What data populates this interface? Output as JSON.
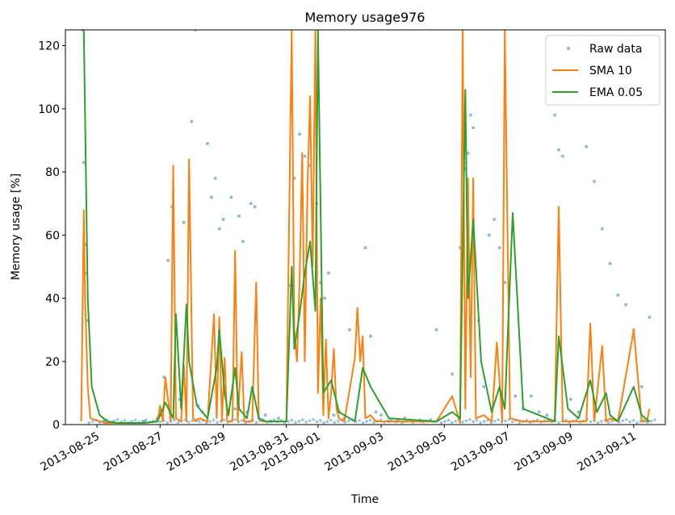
{
  "chart_data": {
    "type": "line",
    "title": "Memory usage976",
    "xlabel": "Time",
    "ylabel": "Memory usage [%]",
    "xlim": [
      "2013-08-24T00:00",
      "2013-09-12T00:00"
    ],
    "ylim": [
      0,
      125
    ],
    "yticks": [
      0,
      20,
      40,
      60,
      80,
      100,
      120
    ],
    "xticks": [
      "2013-08-25",
      "2013-08-27",
      "2013-08-29",
      "2013-08-31",
      "2013-09-01",
      "2013-09-03",
      "2013-09-05",
      "2013-09-07",
      "2013-09-09",
      "2013-09-11"
    ],
    "grid": false,
    "legend_position": "top-right",
    "colors": {
      "raw": "#1f77b4",
      "sma": "#ff7f0e",
      "ema": "#2ca02c"
    },
    "series": [
      {
        "name": "Raw data",
        "style": "points",
        "x": [
          "2013-08-24T14:00",
          "2013-08-24T15:00",
          "2013-08-24T16:00",
          "2013-08-24T17:00",
          "2013-08-25T06:00",
          "2013-08-26T12:00",
          "2013-08-26T22:00",
          "2013-08-27T00:00",
          "2013-08-27T03:00",
          "2013-08-27T06:00",
          "2013-08-27T09:00",
          "2013-08-27T12:00",
          "2013-08-27T15:00",
          "2013-08-27T18:00",
          "2013-08-27T21:00",
          "2013-08-28T00:00",
          "2013-08-28T03:00",
          "2013-08-28T05:00",
          "2013-08-28T08:00",
          "2013-08-28T12:00",
          "2013-08-28T15:00",
          "2013-08-28T18:00",
          "2013-08-28T21:00",
          "2013-08-29T00:00",
          "2013-08-29T03:00",
          "2013-08-29T06:00",
          "2013-08-29T09:00",
          "2013-08-29T12:00",
          "2013-08-29T15:00",
          "2013-08-29T18:00",
          "2013-08-29T21:00",
          "2013-08-30T00:00",
          "2013-08-30T03:00",
          "2013-08-30T08:00",
          "2013-08-30T12:00",
          "2013-08-30T18:00",
          "2013-08-31T02:00",
          "2013-08-31T06:00",
          "2013-08-31T10:00",
          "2013-08-31T14:00",
          "2013-08-31T17:00",
          "2013-08-31T20:00",
          "2013-08-31T23:00",
          "2013-09-01T02:00",
          "2013-09-01T05:00",
          "2013-09-01T08:00",
          "2013-09-01T12:00",
          "2013-09-01T16:00",
          "2013-09-01T20:00",
          "2013-09-02T00:00",
          "2013-09-02T06:00",
          "2013-09-02T12:00",
          "2013-09-02T16:00",
          "2013-09-02T20:00",
          "2013-09-03T00:00",
          "2013-09-03T06:00",
          "2013-09-03T12:00",
          "2013-09-03T18:00",
          "2013-09-04T06:00",
          "2013-09-04T18:00",
          "2013-09-05T06:00",
          "2013-09-05T12:00",
          "2013-09-05T16:00",
          "2013-09-05T18:00",
          "2013-09-05T20:00",
          "2013-09-05T22:00",
          "2013-09-06T02:00",
          "2013-09-06T06:00",
          "2013-09-06T10:00",
          "2013-09-06T14:00",
          "2013-09-06T18:00",
          "2013-09-06T22:00",
          "2013-09-07T06:00",
          "2013-09-07T12:00",
          "2013-09-07T18:00",
          "2013-09-08T00:00",
          "2013-09-08T06:00",
          "2013-09-08T12:00",
          "2013-09-08T15:00",
          "2013-09-08T18:00",
          "2013-09-09T00:00",
          "2013-09-09T06:00",
          "2013-09-09T12:00",
          "2013-09-09T18:00",
          "2013-09-10T00:00",
          "2013-09-10T06:00",
          "2013-09-10T12:00",
          "2013-09-10T18:00",
          "2013-09-11T00:00",
          "2013-09-11T06:00",
          "2013-09-11T12:00"
        ],
        "y": [
          83,
          57,
          48,
          33,
          1,
          1,
          2,
          3,
          15,
          52,
          69,
          30,
          8,
          64,
          25,
          96,
          125,
          6,
          4,
          89,
          72,
          78,
          62,
          65,
          3,
          72,
          5,
          66,
          58,
          4,
          70,
          69,
          2,
          3,
          1,
          2,
          44,
          78,
          92,
          85,
          82,
          66,
          70,
          45,
          40,
          48,
          3,
          4,
          2,
          30,
          35,
          56,
          28,
          4,
          3,
          1,
          1,
          2,
          1,
          30,
          16,
          56,
          81,
          86,
          98,
          94,
          33,
          12,
          60,
          65,
          56,
          45,
          9,
          5,
          9,
          4,
          3,
          98,
          87,
          85,
          8,
          4,
          88,
          77,
          62,
          51,
          41,
          38,
          30,
          12,
          34
        ]
      },
      {
        "name": "SMA 10",
        "style": "line",
        "x": [
          "2013-08-24T12:00",
          "2013-08-24T14:00",
          "2013-08-24T15:00",
          "2013-08-24T17:00",
          "2013-08-24T19:00",
          "2013-08-25T06:00",
          "2013-08-26T12:00",
          "2013-08-26T22:00",
          "2013-08-27T00:00",
          "2013-08-27T02:00",
          "2013-08-27T04:00",
          "2013-08-27T08:00",
          "2013-08-27T10:00",
          "2013-08-27T12:00",
          "2013-08-27T16:00",
          "2013-08-27T18:00",
          "2013-08-27T20:00",
          "2013-08-27T22:00",
          "2013-08-28T01:00",
          "2013-08-28T03:00",
          "2013-08-28T06:00",
          "2013-08-28T12:00",
          "2013-08-28T17:00",
          "2013-08-28T19:00",
          "2013-08-28T21:00",
          "2013-08-28T23:00",
          "2013-08-29T01:00",
          "2013-08-29T03:00",
          "2013-08-29T07:00",
          "2013-08-29T09:00",
          "2013-08-29T11:00",
          "2013-08-29T14:00",
          "2013-08-29T16:00",
          "2013-08-29T18:00",
          "2013-08-29T22:00",
          "2013-08-30T01:00",
          "2013-08-30T03:00",
          "2013-08-30T06:00",
          "2013-08-30T12:00",
          "2013-08-31T00:00",
          "2013-08-31T04:00",
          "2013-08-31T06:00",
          "2013-08-31T08:00",
          "2013-08-31T10:00",
          "2013-08-31T12:00",
          "2013-08-31T14:00",
          "2013-08-31T16:00",
          "2013-08-31T18:00",
          "2013-08-31T20:00",
          "2013-08-31T22:00",
          "2013-09-01T00:00",
          "2013-09-01T02:00",
          "2013-09-01T04:00",
          "2013-09-01T06:00",
          "2013-09-01T08:00",
          "2013-09-01T10:00",
          "2013-09-01T12:00",
          "2013-09-01T14:00",
          "2013-09-01T16:00",
          "2013-09-01T20:00",
          "2013-09-02T04:00",
          "2013-09-02T06:00",
          "2013-09-02T08:00",
          "2013-09-02T10:00",
          "2013-09-02T12:00",
          "2013-09-02T16:00",
          "2013-09-02T20:00",
          "2013-09-03T06:00",
          "2013-09-04T12:00",
          "2013-09-04T18:00",
          "2013-09-05T06:00",
          "2013-09-05T12:00",
          "2013-09-05T14:00",
          "2013-09-05T16:00",
          "2013-09-05T18:00",
          "2013-09-05T20:00",
          "2013-09-05T22:00",
          "2013-09-06T00:00",
          "2013-09-06T06:00",
          "2013-09-06T12:00",
          "2013-09-06T16:00",
          "2013-09-06T20:00",
          "2013-09-06T22:00",
          "2013-09-07T02:00",
          "2013-09-07T12:00",
          "2013-09-08T12:00",
          "2013-09-08T15:00",
          "2013-09-08T18:00",
          "2013-09-09T06:00",
          "2013-09-09T12:00",
          "2013-09-09T15:00",
          "2013-09-09T18:00",
          "2013-09-10T00:00",
          "2013-09-10T03:00",
          "2013-09-10T06:00",
          "2013-09-10T12:00",
          "2013-09-11T00:00",
          "2013-09-11T06:00",
          "2013-09-11T10:00",
          "2013-09-11T12:00"
        ],
        "y": [
          1,
          68,
          40,
          12,
          2,
          0.5,
          0.5,
          1,
          6,
          1,
          15,
          1,
          82,
          2,
          1,
          19,
          1,
          84,
          2,
          1,
          2,
          1,
          35,
          2,
          34,
          1,
          21,
          1,
          1,
          55,
          1,
          23,
          1,
          1,
          1,
          45,
          2,
          1,
          1,
          1,
          125,
          30,
          20,
          45,
          86,
          20,
          75,
          104,
          50,
          125,
          10,
          40,
          3,
          27,
          2,
          10,
          24,
          5,
          2,
          1,
          21,
          37,
          20,
          28,
          2,
          3,
          1,
          1,
          1,
          1,
          9,
          0.5,
          125,
          5,
          78,
          15,
          78,
          2,
          3,
          1,
          26,
          1,
          125,
          2,
          1,
          1,
          69,
          1,
          1,
          1,
          32,
          1,
          25,
          1,
          2,
          1,
          30,
          1,
          1,
          5
        ]
      },
      {
        "name": "EMA 0.05",
        "style": "line",
        "x": [
          "2013-08-24T12:00",
          "2013-08-24T14:00",
          "2013-08-24T17:00",
          "2013-08-24T20:00",
          "2013-08-25T02:00",
          "2013-08-25T08:00",
          "2013-08-25T16:00",
          "2013-08-26T12:00",
          "2013-08-26T22:00",
          "2013-08-27T00:00",
          "2013-08-27T04:00",
          "2013-08-27T10:00",
          "2013-08-27T12:00",
          "2013-08-27T16:00",
          "2013-08-27T20:00",
          "2013-08-27T22:00",
          "2013-08-28T04:00",
          "2013-08-28T12:00",
          "2013-08-28T19:00",
          "2013-08-28T21:00",
          "2013-08-29T01:00",
          "2013-08-29T04:00",
          "2013-08-29T09:00",
          "2013-08-29T12:00",
          "2013-08-29T18:00",
          "2013-08-29T22:00",
          "2013-08-30T03:00",
          "2013-08-30T08:00",
          "2013-08-31T00:00",
          "2013-08-31T04:00",
          "2013-08-31T06:00",
          "2013-08-31T10:00",
          "2013-08-31T14:00",
          "2013-08-31T18:00",
          "2013-08-31T22:00",
          "2013-09-01T00:00",
          "2013-09-01T04:00",
          "2013-09-01T10:00",
          "2013-09-01T16:00",
          "2013-09-02T04:00",
          "2013-09-02T10:00",
          "2013-09-02T16:00",
          "2013-09-03T06:00",
          "2013-09-04T18:00",
          "2013-09-05T06:00",
          "2013-09-05T12:00",
          "2013-09-05T16:00",
          "2013-09-05T18:00",
          "2013-09-05T22:00",
          "2013-09-06T04:00",
          "2013-09-06T12:00",
          "2013-09-06T18:00",
          "2013-09-06T22:00",
          "2013-09-07T04:00",
          "2013-09-07T12:00",
          "2013-09-08T12:00",
          "2013-09-08T15:00",
          "2013-09-08T22:00",
          "2013-09-09T06:00",
          "2013-09-09T15:00",
          "2013-09-09T20:00",
          "2013-09-10T03:00",
          "2013-09-10T06:00",
          "2013-09-10T12:00",
          "2013-09-11T00:00",
          "2013-09-11T06:00",
          "2013-09-11T12:00"
        ],
        "y": [
          125,
          125,
          40,
          12,
          3,
          1,
          0.5,
          0.5,
          1,
          3,
          7,
          2,
          35,
          5,
          38,
          20,
          6,
          2,
          18,
          30,
          10,
          3,
          18,
          5,
          2,
          12,
          2,
          1,
          1,
          50,
          24,
          35,
          48,
          58,
          36,
          125,
          10,
          14,
          4,
          1,
          18,
          12,
          2,
          1,
          4,
          2,
          106,
          40,
          65,
          20,
          4,
          12,
          5,
          67,
          5,
          1,
          28,
          5,
          2,
          14,
          4,
          10,
          3,
          1,
          12,
          3,
          1
        ]
      }
    ]
  }
}
